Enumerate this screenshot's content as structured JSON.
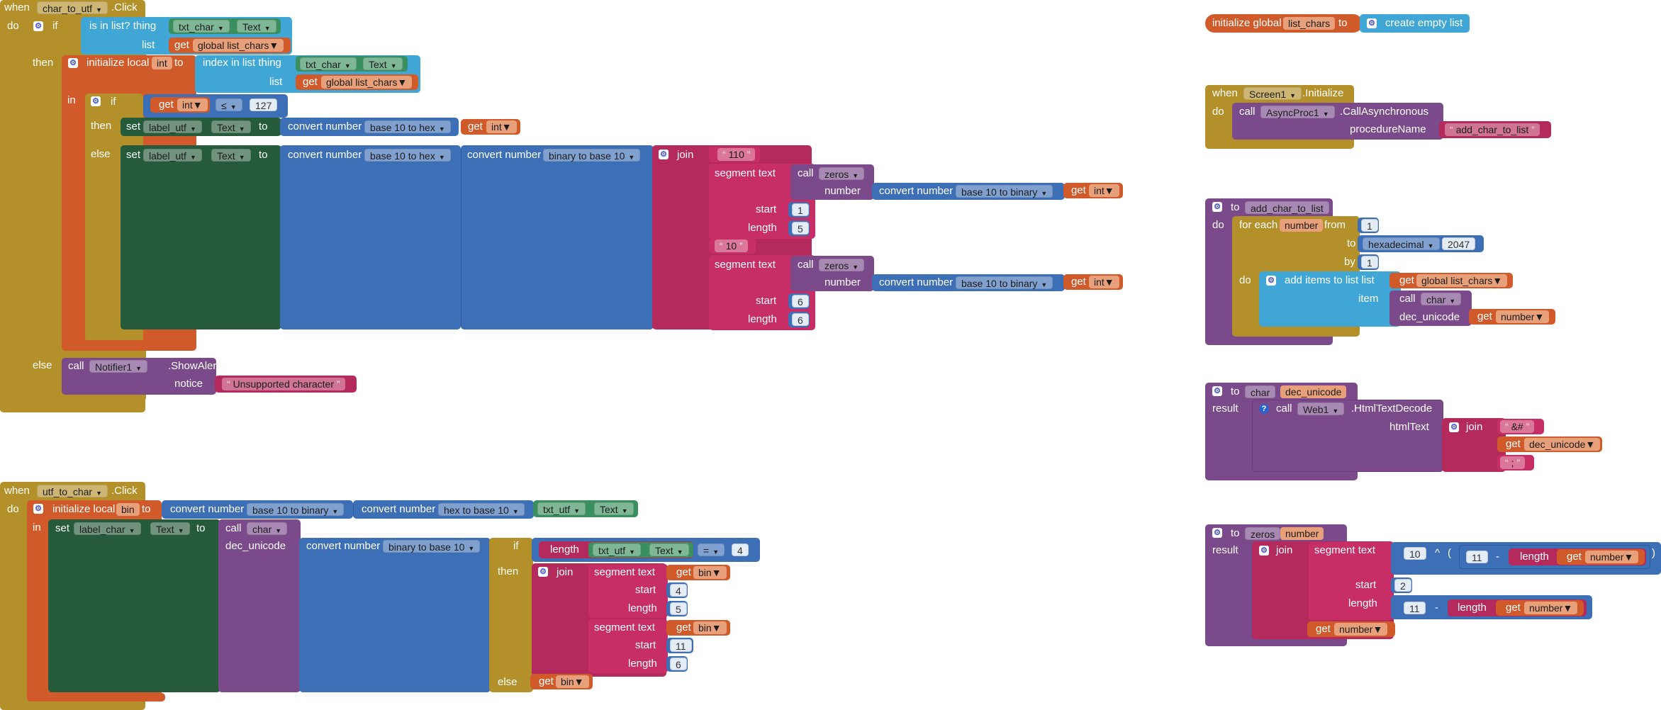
{
  "block_labels": {
    "when": "when",
    "do": "do",
    "if": "if",
    "then": "then",
    "else": "else",
    "in": "in",
    "to": "to",
    "result": "result",
    "call": "call",
    "set": "set",
    "get": "get",
    "is_in_list": "is in list?",
    "thing": "thing",
    "list": "list",
    "initialize_local": "initialize local",
    "initialize_global": "initialize global",
    "index_in_list": "index in list",
    "convert_number": "convert number",
    "join": "join",
    "segment": "segment",
    "text": "text",
    "number": "number",
    "start": "start",
    "length": "length",
    "notice": "notice",
    "create_empty_list": "create empty list",
    "procedureName": "procedureName",
    "for_each": "for each",
    "from": "from",
    "by": "by",
    "add_items_to_list": "add items to list",
    "item": "item",
    "dec_unicode": "dec_unicode",
    "htmlText": "htmlText"
  },
  "dropdowns": {
    "char_to_utf": "char_to_utf",
    "utf_to_char": "utf_to_char",
    "screen1": "Screen1",
    "txt_char": "txt_char",
    "txt_utf": "txt_utf",
    "text_prop": "Text",
    "global_list_chars": "global list_chars",
    "list_chars": "list_chars",
    "int": "int",
    "bin": "bin",
    "number": "number",
    "dec_unicode": "dec_unicode",
    "label_utf": "label_utf",
    "label_char": "label_char",
    "base10_to_hex": "base 10 to hex",
    "binary_to_base10": "binary to base 10",
    "base10_to_binary": "base 10 to binary",
    "hex_to_base10": "hex to base 10",
    "zeros": "zeros",
    "char": "char",
    "notifier1": "Notifier1",
    "asyncproc1": "AsyncProc1",
    "web1": "Web1",
    "hexadecimal": "hexadecimal",
    "le": "≤",
    "eq": "=",
    "add_char_to_list": "add_char_to_list"
  },
  "events": {
    "click": ".Click",
    "initialize": ".Initialize",
    "show_alert": ".ShowAlert",
    "call_async": ".CallAsynchronous",
    "html_decode": ".HtmlTextDecode"
  },
  "values": {
    "n127": "127",
    "s110": "110",
    "s10": "10",
    "n1": "1",
    "n5": "5",
    "n6": "6",
    "n4": "4",
    "n11": "11",
    "n2": "2",
    "n10": "10",
    "n2047": "2047",
    "amp_hash": "&#",
    "semicolon": ";",
    "unsupported": "Unsupported character",
    "async_proc_name": "add_char_to_list"
  },
  "operators": {
    "caret": "^",
    "minus": "-",
    "left_paren": "(",
    "right_paren": ")"
  },
  "icons": {
    "mutator": "gear-icon",
    "help": "question-icon"
  }
}
